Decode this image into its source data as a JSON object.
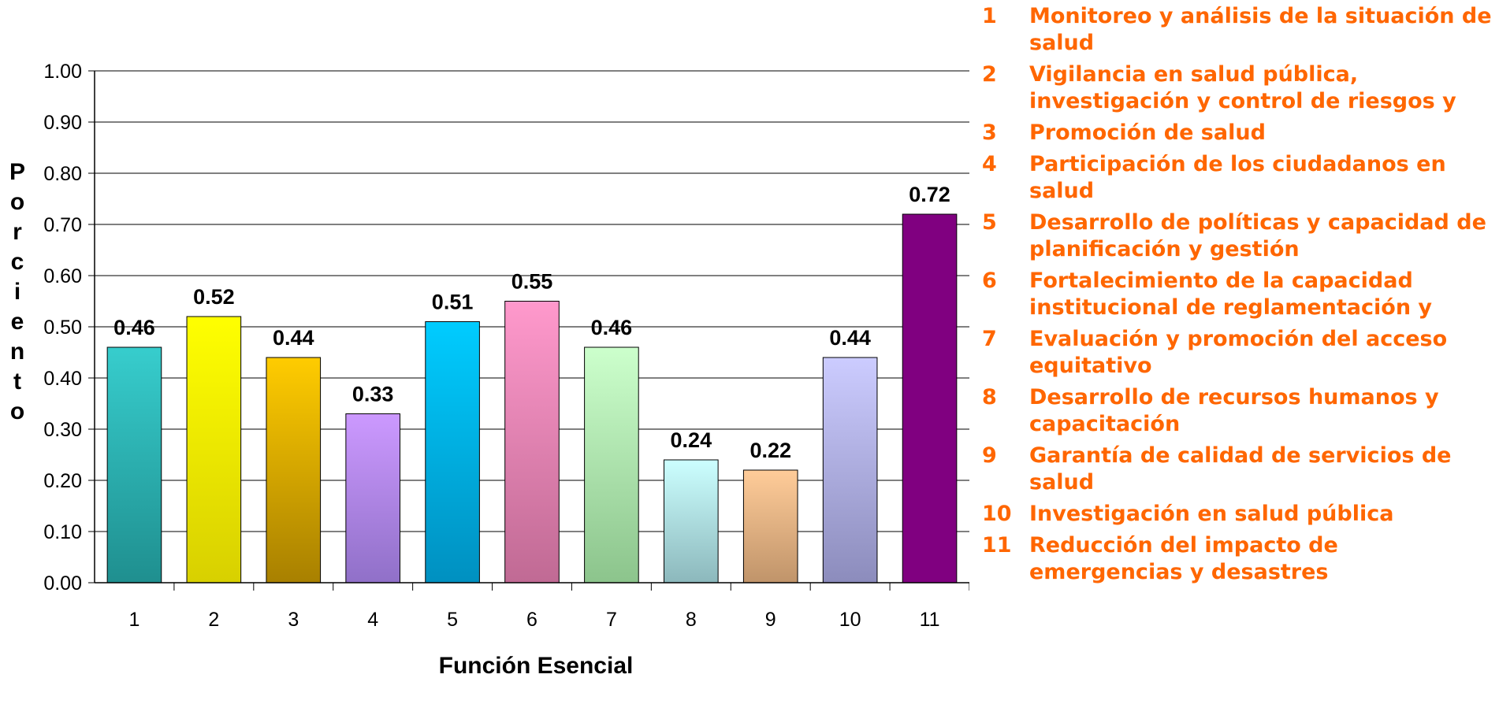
{
  "chart_data": {
    "type": "bar",
    "categories": [
      "1",
      "2",
      "3",
      "4",
      "5",
      "6",
      "7",
      "8",
      "9",
      "10",
      "11"
    ],
    "values": [
      0.46,
      0.52,
      0.44,
      0.33,
      0.51,
      0.55,
      0.46,
      0.24,
      0.22,
      0.44,
      0.72
    ],
    "data_labels": [
      "0.46",
      "0.52",
      "0.44",
      "0.33",
      "0.51",
      "0.55",
      "0.46",
      "0.24",
      "0.22",
      "0.44",
      "0.72"
    ],
    "colors": [
      [
        "#37cdcd",
        "#1f8f8f"
      ],
      [
        "#ffff00",
        "#d8d000"
      ],
      [
        "#ffcc00",
        "#a88000"
      ],
      [
        "#cc99ff",
        "#9070c8"
      ],
      [
        "#00ccff",
        "#0090c0"
      ],
      [
        "#ff99cc",
        "#c06a94"
      ],
      [
        "#ccffcc",
        "#8cc48c"
      ],
      [
        "#ccffff",
        "#8cb8bc"
      ],
      [
        "#ffcc99",
        "#c0946a"
      ],
      [
        "#ccccff",
        "#8c8cbc"
      ],
      [
        "#800080",
        "#800080"
      ]
    ],
    "xlabel": "Función Esencial",
    "ylabel": "Porciento",
    "ylim": [
      0,
      1
    ],
    "yticks": [
      "0.00",
      "0.10",
      "0.20",
      "0.30",
      "0.40",
      "0.50",
      "0.60",
      "0.70",
      "0.80",
      "0.90",
      "1.00"
    ],
    "grid": true,
    "legend_position": "right"
  },
  "legend": {
    "color": "#ff6600",
    "items": [
      {
        "num": "1",
        "label": "Monitoreo y análisis de la situación de salud"
      },
      {
        "num": "2",
        "label": "Vigilancia en salud pública, investigación y control de riesgos y"
      },
      {
        "num": "3",
        "label": "Promoción de salud"
      },
      {
        "num": "4",
        "label": "Participación de los ciudadanos en salud"
      },
      {
        "num": "5",
        "label": "Desarrollo de políticas y capacidad de planificación y gestión"
      },
      {
        "num": "6",
        "label": "Fortalecimiento de la capacidad institucional de reglamentación y"
      },
      {
        "num": "7",
        "label": "Evaluación y promoción del acceso equitativo"
      },
      {
        "num": "8",
        "label": "Desarrollo de recursos humanos y capacitación"
      },
      {
        "num": "9",
        "label": "Garantía de calidad de servicios de salud"
      },
      {
        "num": "10",
        "label": "Investigación en salud pública"
      },
      {
        "num": "11",
        "label": "Reducción del impacto de emergencias y desastres"
      }
    ]
  }
}
